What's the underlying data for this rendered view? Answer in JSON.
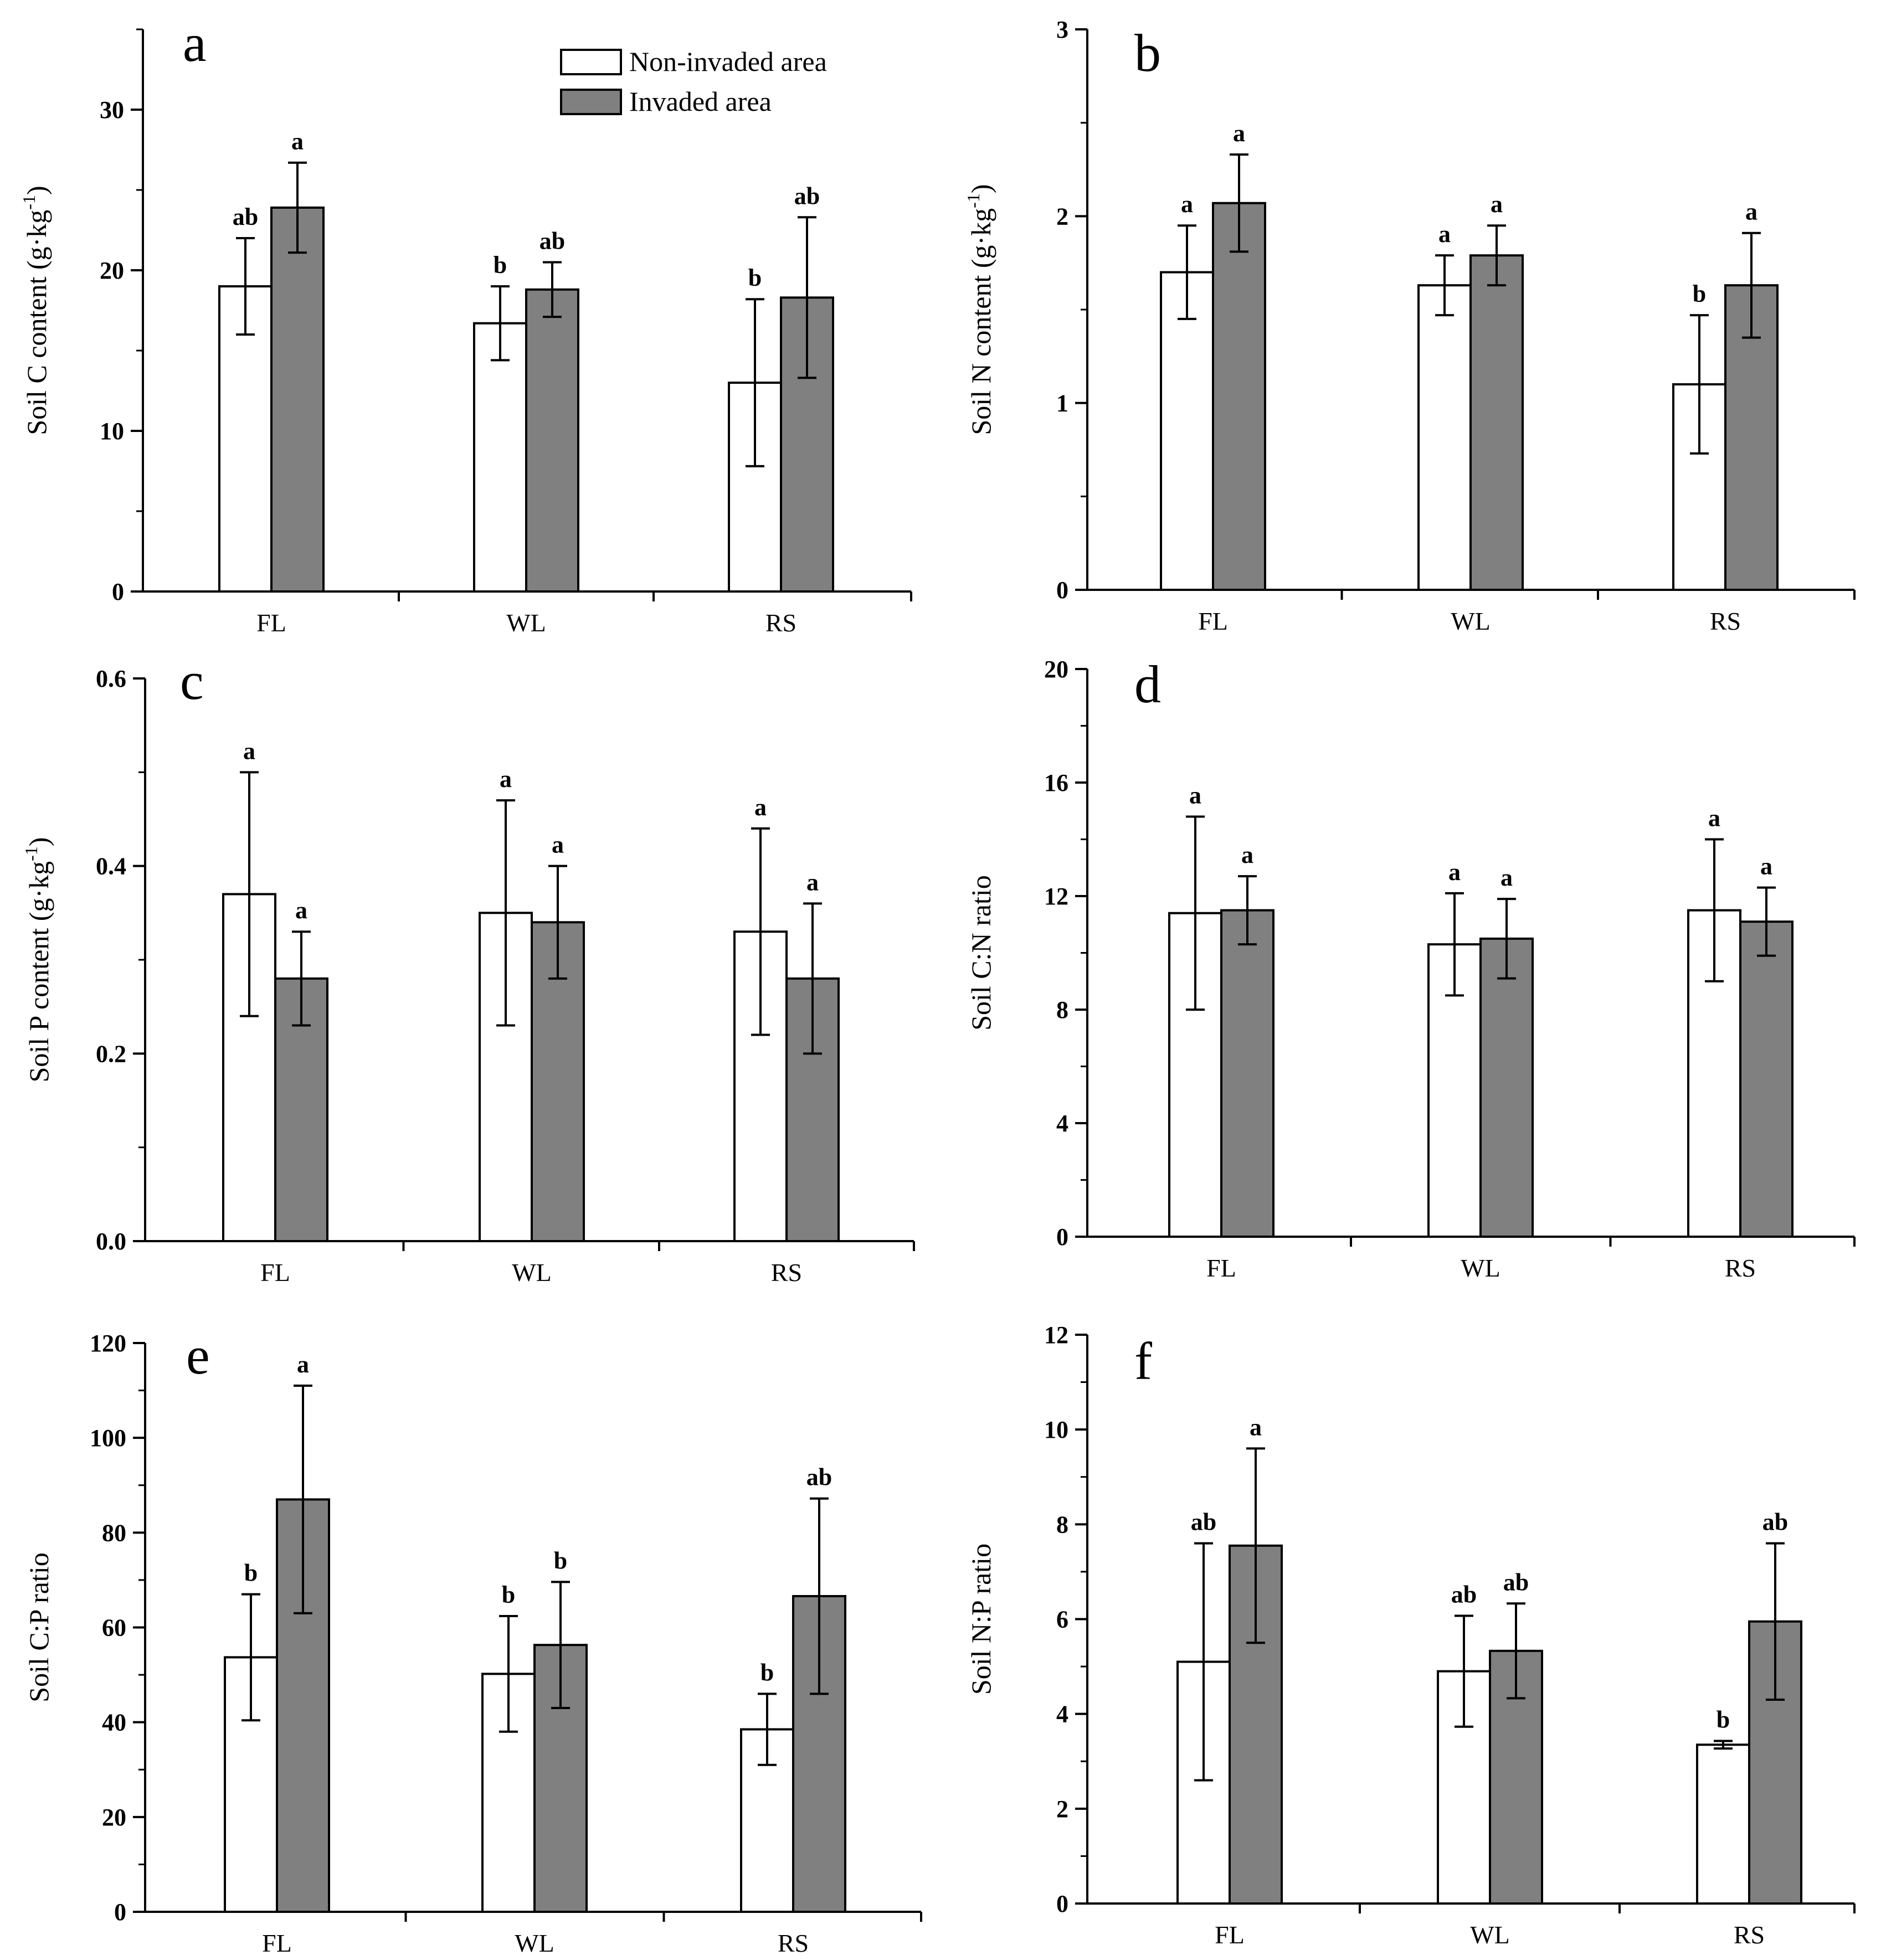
{
  "legend": {
    "non_invaded": "Non-invaded area",
    "invaded": "Invaded area"
  },
  "colors": {
    "non_invaded_fill": "#ffffff",
    "invaded_fill": "#808080",
    "stroke": "#000000"
  },
  "chart_data": [
    {
      "type": "bar",
      "letter": "a",
      "ylabel": "Soil C content (g·kg",
      "ylabel_sup": "-1",
      "ylabel_close": ")",
      "ylim": [
        0,
        35
      ],
      "yticks": [
        0,
        10,
        20,
        30
      ],
      "ytick_labels": [
        "0",
        "10",
        "20",
        "30"
      ],
      "categories": [
        "FL",
        "WL",
        "RS"
      ],
      "series": [
        {
          "name": "Non-invaded area",
          "values": [
            19.0,
            16.7,
            13.0
          ],
          "errors": [
            3.0,
            2.3,
            5.2
          ],
          "sig": [
            "ab",
            "b",
            "b"
          ]
        },
        {
          "name": "Invaded area",
          "values": [
            23.9,
            18.8,
            18.3
          ],
          "errors": [
            2.8,
            1.7,
            5.0
          ],
          "sig": [
            "a",
            "ab",
            "ab"
          ]
        }
      ]
    },
    {
      "type": "bar",
      "letter": "b",
      "ylabel": "Soil N content (g·kg",
      "ylabel_sup": "-1",
      "ylabel_close": ")",
      "ylim": [
        0,
        3
      ],
      "yticks": [
        0,
        1,
        2,
        3
      ],
      "ytick_labels": [
        "0",
        "1",
        "2",
        "3"
      ],
      "categories": [
        "FL",
        "WL",
        "RS"
      ],
      "series": [
        {
          "name": "Non-invaded area",
          "values": [
            1.7,
            1.63,
            1.1
          ],
          "errors": [
            0.25,
            0.16,
            0.37
          ],
          "sig": [
            "a",
            "a",
            "b"
          ]
        },
        {
          "name": "Invaded area",
          "values": [
            2.07,
            1.79,
            1.63
          ],
          "errors": [
            0.26,
            0.16,
            0.28
          ],
          "sig": [
            "a",
            "a",
            "a"
          ]
        }
      ]
    },
    {
      "type": "bar",
      "letter": "c",
      "ylabel": "Soil P content (g·kg",
      "ylabel_sup": "-1",
      "ylabel_close": ")",
      "ylim": [
        0,
        0.6
      ],
      "yticks": [
        0,
        0.2,
        0.4,
        0.6
      ],
      "ytick_labels": [
        "0.0",
        "0.2",
        "0.4",
        "0.6"
      ],
      "categories": [
        "FL",
        "WL",
        "RS"
      ],
      "series": [
        {
          "name": "Non-invaded area",
          "values": [
            0.37,
            0.35,
            0.33
          ],
          "errors": [
            0.13,
            0.12,
            0.11
          ],
          "sig": [
            "a",
            "a",
            "a"
          ]
        },
        {
          "name": "Invaded area",
          "values": [
            0.28,
            0.34,
            0.28
          ],
          "errors": [
            0.05,
            0.06,
            0.08
          ],
          "sig": [
            "a",
            "a",
            "a"
          ]
        }
      ]
    },
    {
      "type": "bar",
      "letter": "d",
      "ylabel": "Soil C:N ratio",
      "ylabel_sup": "",
      "ylabel_close": "",
      "ylim": [
        0,
        20
      ],
      "yticks": [
        0,
        4,
        8,
        12,
        16,
        20
      ],
      "ytick_labels": [
        "0",
        "4",
        "8",
        "12",
        "16",
        "20"
      ],
      "categories": [
        "FL",
        "WL",
        "RS"
      ],
      "series": [
        {
          "name": "Non-invaded area",
          "values": [
            11.4,
            10.3,
            11.5
          ],
          "errors": [
            3.4,
            1.8,
            2.5
          ],
          "sig": [
            "a",
            "a",
            "a"
          ]
        },
        {
          "name": "Invaded area",
          "values": [
            11.5,
            10.5,
            11.1
          ],
          "errors": [
            1.2,
            1.4,
            1.2
          ],
          "sig": [
            "a",
            "a",
            "a"
          ]
        }
      ]
    },
    {
      "type": "bar",
      "letter": "e",
      "ylabel": "Soil C:P ratio",
      "ylabel_sup": "",
      "ylabel_close": "",
      "ylim": [
        0,
        120
      ],
      "yticks": [
        0,
        20,
        40,
        60,
        80,
        100,
        120
      ],
      "ytick_labels": [
        "0",
        "20",
        "40",
        "60",
        "80",
        "100",
        "120"
      ],
      "categories": [
        "FL",
        "WL",
        "RS"
      ],
      "series": [
        {
          "name": "Non-invaded area",
          "values": [
            53.7,
            50.2,
            38.5
          ],
          "errors": [
            13.3,
            12.2,
            7.5
          ],
          "sig": [
            "b",
            "b",
            "b"
          ]
        },
        {
          "name": "Invaded area",
          "values": [
            87.0,
            56.3,
            66.6
          ],
          "errors": [
            24.0,
            13.3,
            20.6
          ],
          "sig": [
            "a",
            "b",
            "ab"
          ]
        }
      ]
    },
    {
      "type": "bar",
      "letter": "f",
      "ylabel": "Soil N:P ratio",
      "ylabel_sup": "",
      "ylabel_close": "",
      "ylim": [
        0,
        12
      ],
      "yticks": [
        0,
        2,
        4,
        6,
        8,
        10,
        12
      ],
      "ytick_labels": [
        "0",
        "2",
        "4",
        "6",
        "8",
        "10",
        "12"
      ],
      "categories": [
        "FL",
        "WL",
        "RS"
      ],
      "series": [
        {
          "name": "Non-invaded area",
          "values": [
            5.1,
            4.9,
            3.35
          ],
          "errors": [
            2.5,
            1.17,
            0.08
          ],
          "sig": [
            "ab",
            "ab",
            "b"
          ]
        },
        {
          "name": "Invaded area",
          "values": [
            7.55,
            5.33,
            5.95
          ],
          "errors": [
            2.05,
            1.0,
            1.65
          ],
          "sig": [
            "a",
            "ab",
            "ab"
          ]
        }
      ]
    }
  ]
}
